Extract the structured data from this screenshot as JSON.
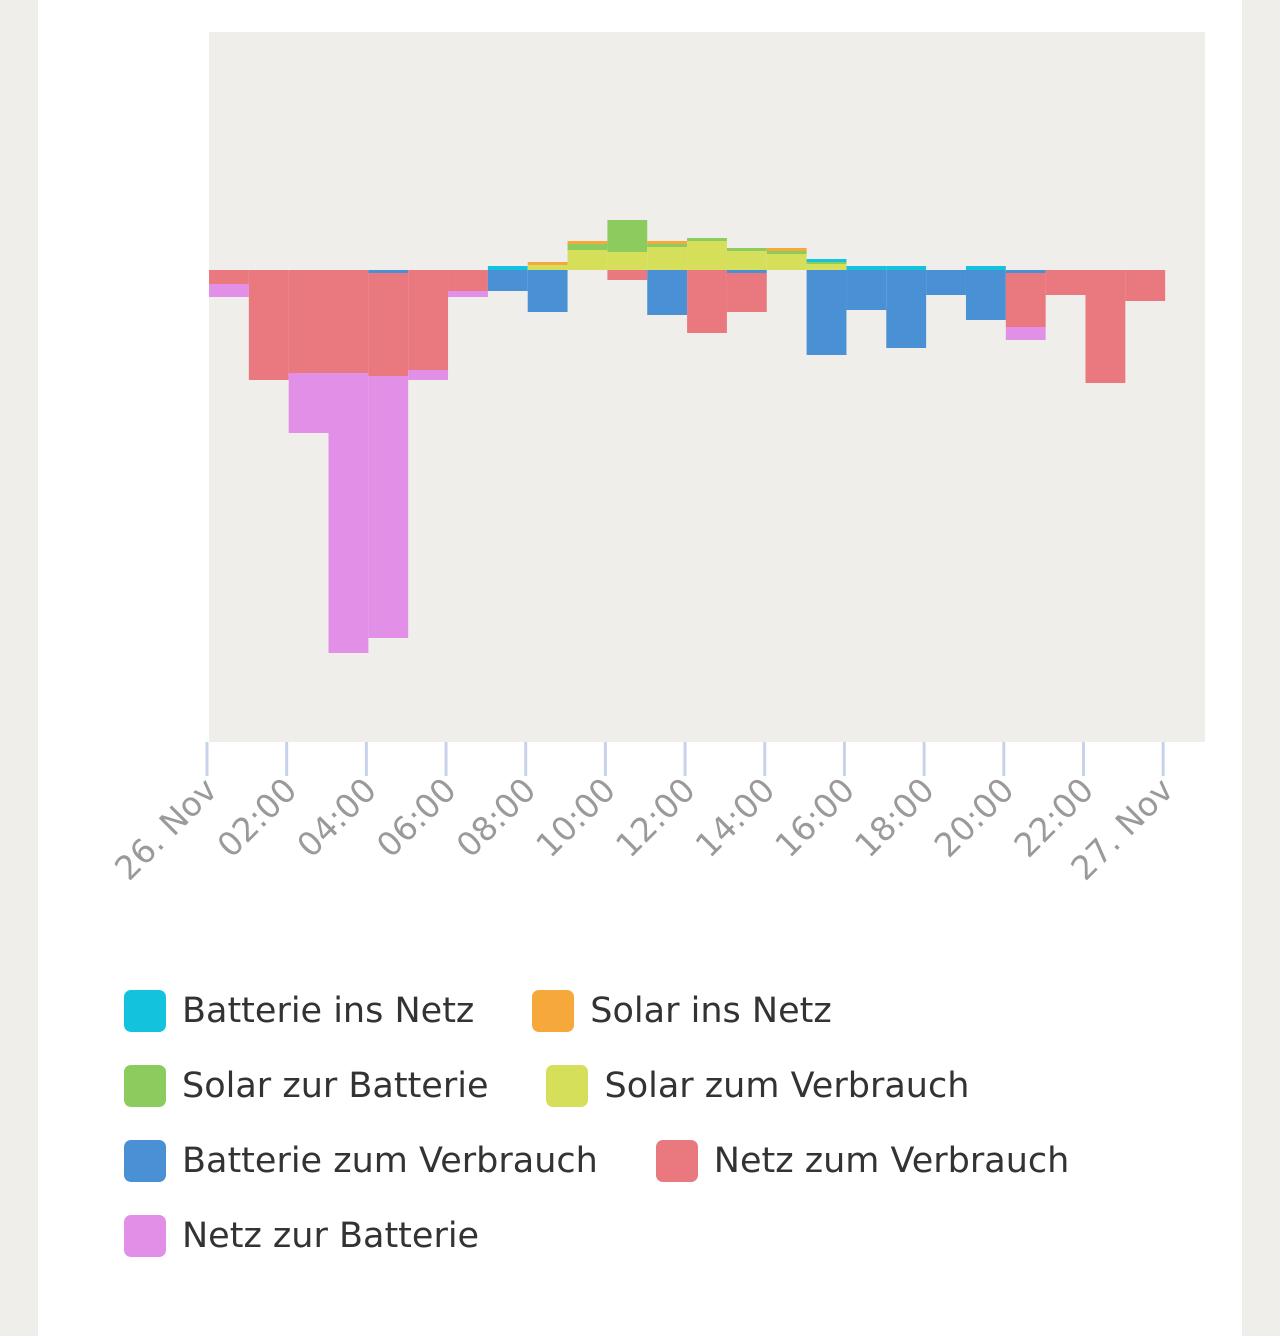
{
  "chart_data": {
    "type": "bar",
    "x": [
      0,
      1,
      2,
      3,
      4,
      5,
      6,
      7,
      8,
      9,
      10,
      11,
      12,
      13,
      14,
      15,
      16,
      17,
      18,
      19,
      20,
      21,
      22,
      23
    ],
    "xlim": [
      0,
      25
    ],
    "xticks": [
      {
        "value": 0,
        "label": "26. Nov"
      },
      {
        "value": 2,
        "label": "02:00"
      },
      {
        "value": 4,
        "label": "04:00"
      },
      {
        "value": 6,
        "label": "06:00"
      },
      {
        "value": 8,
        "label": "08:00"
      },
      {
        "value": 10,
        "label": "10:00"
      },
      {
        "value": 12,
        "label": "12:00"
      },
      {
        "value": 14,
        "label": "14:00"
      },
      {
        "value": 16,
        "label": "16:00"
      },
      {
        "value": 18,
        "label": "18:00"
      },
      {
        "value": 20,
        "label": "20:00"
      },
      {
        "value": 22,
        "label": "22:00"
      },
      {
        "value": 24,
        "label": "27. Nov"
      }
    ],
    "ylim": [
      -4.72,
      2.38
    ],
    "stacked": true,
    "series": [
      {
        "name": "Batterie ins Netz",
        "color": "#13c3dd",
        "values": [
          0,
          0,
          0,
          0,
          0,
          0,
          0,
          0.04,
          0,
          0,
          0,
          0,
          0,
          0,
          0,
          0.03,
          0.04,
          0.04,
          0,
          0.04,
          0,
          0,
          0,
          0
        ]
      },
      {
        "name": "Solar ins Netz",
        "color": "#f6a83b",
        "values": [
          0,
          0,
          0,
          0,
          0,
          0,
          0,
          0,
          0.03,
          0.03,
          0,
          0.03,
          0,
          0,
          0.03,
          0,
          0,
          0,
          0,
          0,
          0,
          0,
          0,
          0
        ]
      },
      {
        "name": "Solar zur Batterie",
        "color": "#8ccb5e",
        "values": [
          0,
          0,
          0,
          0,
          0,
          0,
          0,
          0,
          0,
          0.06,
          0.32,
          0.03,
          0.03,
          0.03,
          0.03,
          0.02,
          0,
          0,
          0,
          0,
          0,
          0,
          0,
          0
        ]
      },
      {
        "name": "Solar zum Verbrauch",
        "color": "#d6df5a",
        "values": [
          0,
          0,
          0,
          0,
          0,
          0,
          0,
          0,
          0.05,
          0.2,
          0.18,
          0.23,
          0.29,
          0.19,
          0.16,
          0.06,
          0,
          0,
          0,
          0,
          0,
          0,
          0,
          0
        ]
      },
      {
        "name": "Batterie zum Verbrauch",
        "color": "#4a90d4",
        "values": [
          0,
          0,
          0,
          0,
          -0.03,
          0,
          0,
          -0.21,
          -0.42,
          0,
          0,
          -0.45,
          0,
          -0.03,
          0,
          -0.85,
          -0.4,
          -0.78,
          -0.25,
          -0.5,
          -0.03,
          0,
          0,
          0
        ]
      },
      {
        "name": "Netz zum Verbrauch",
        "color": "#e9787f",
        "values": [
          -0.14,
          -1.1,
          -1.03,
          -1.03,
          -1.03,
          -1.0,
          -0.21,
          0,
          0,
          0,
          -0.1,
          0,
          -0.63,
          -0.39,
          0,
          0,
          0,
          0,
          0,
          0,
          -0.54,
          -0.25,
          -1.13,
          -0.31
        ]
      },
      {
        "name": "Netz zur Batterie",
        "color": "#e28fe8",
        "values": [
          -0.13,
          0,
          -0.6,
          -2.8,
          -2.62,
          -0.1,
          -0.06,
          0,
          0,
          0,
          0,
          0,
          0,
          0,
          0,
          0,
          0,
          0,
          0,
          0,
          -0.13,
          0,
          0,
          0
        ]
      }
    ]
  }
}
